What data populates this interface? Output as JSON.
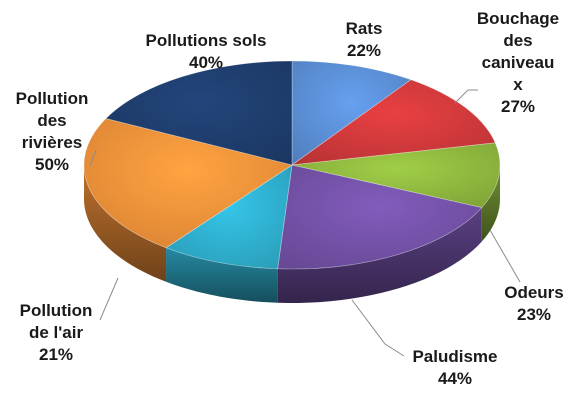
{
  "chart_data": {
    "type": "pie",
    "title": "",
    "series": [
      {
        "name": "",
        "slices": [
          {
            "label_lines": [
              "Rats"
            ],
            "label": "Rats",
            "percent_text": "22%",
            "value": 22,
            "color": "#5b8fd6"
          },
          {
            "label_lines": [
              "Bouchage",
              "des",
              "caniveau",
              "x"
            ],
            "label": "Bouchage des caniveaux",
            "percent_text": "27%",
            "value": 27,
            "color": "#d0393b"
          },
          {
            "label_lines": [
              "Odeurs"
            ],
            "label": "Odeurs",
            "percent_text": "23%",
            "value": 23,
            "color": "#8fb83f"
          },
          {
            "label_lines": [
              "Paludisme"
            ],
            "label": "Paludisme",
            "percent_text": "44%",
            "value": 44,
            "color": "#7452a8"
          },
          {
            "label_lines": [
              "Pollution",
              "de l'air"
            ],
            "label": "Pollution de l'air",
            "percent_text": "21%",
            "value": 21,
            "color": "#2fb0cf"
          },
          {
            "label_lines": [
              "Pollution",
              "des",
              "rivières"
            ],
            "label": "Pollution des rivières",
            "percent_text": "50%",
            "value": 50,
            "color": "#f5923a"
          },
          {
            "label_lines": [
              "Pollutions sols"
            ],
            "label": "Pollutions sols",
            "percent_text": "40%",
            "value": 40,
            "color": "#1f3e6e"
          }
        ]
      }
    ],
    "style": "3d-pie",
    "start_angle_position": "top (12 o'clock), clockwise",
    "legend": "none"
  }
}
